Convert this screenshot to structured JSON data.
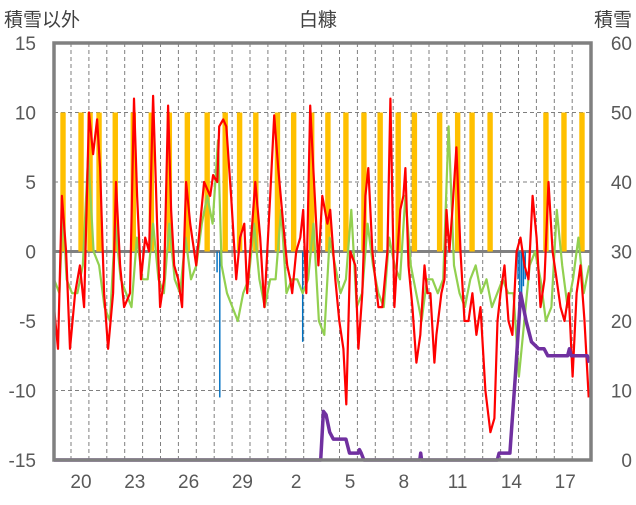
{
  "chart_data": {
    "type": "line",
    "title": "白糠",
    "ylabel_left": "積雪以外",
    "ylabel_right": "積雪",
    "ylim_left": [
      -15,
      15
    ],
    "ylim_right": [
      0,
      60
    ],
    "yticks_left": [
      "15",
      "10",
      "5",
      "0",
      "-5",
      "-10",
      "-15"
    ],
    "yticks_right": [
      "60",
      "50",
      "40",
      "30",
      "20",
      "10",
      "0"
    ],
    "xlim_days": [
      0,
      29.8
    ],
    "xtick_labels": [
      "20",
      "23",
      "26",
      "29",
      "2",
      "5",
      "8",
      "11",
      "14",
      "17"
    ],
    "grid": true,
    "colors": {
      "red": "#ff0000",
      "green": "#92d050",
      "orange": "#ffc000",
      "blue": "#0070c0",
      "purple": "#7030a0",
      "axis": "#808080"
    },
    "series": [
      {
        "name": "red",
        "axis": "left",
        "points": [
          [
            0,
            -4
          ],
          [
            0.22,
            -7
          ],
          [
            0.44,
            4
          ],
          [
            0.67,
            0
          ],
          [
            0.89,
            -7
          ],
          [
            1.17,
            -3
          ],
          [
            1.44,
            -1
          ],
          [
            1.67,
            -4
          ],
          [
            1.94,
            10
          ],
          [
            2.17,
            7
          ],
          [
            2.39,
            9.5
          ],
          [
            2.56,
            6
          ],
          [
            2.78,
            -3
          ],
          [
            3,
            -7
          ],
          [
            3.28,
            -3
          ],
          [
            3.44,
            5
          ],
          [
            3.67,
            -1
          ],
          [
            3.89,
            -4
          ],
          [
            4.22,
            -3
          ],
          [
            4.44,
            11
          ],
          [
            4.61,
            4
          ],
          [
            4.83,
            -2
          ],
          [
            5.06,
            1
          ],
          [
            5.28,
            0
          ],
          [
            5.5,
            11.2
          ],
          [
            5.72,
            2
          ],
          [
            5.89,
            -4
          ],
          [
            6.11,
            -2
          ],
          [
            6.33,
            10.5
          ],
          [
            6.5,
            3
          ],
          [
            6.67,
            -1
          ],
          [
            6.89,
            -2
          ],
          [
            7.11,
            -4
          ],
          [
            7.33,
            5
          ],
          [
            7.56,
            2
          ],
          [
            7.89,
            -1
          ],
          [
            8.33,
            5
          ],
          [
            8.67,
            4
          ],
          [
            8.83,
            5.5
          ],
          [
            9.06,
            5
          ],
          [
            9.17,
            9
          ],
          [
            9.39,
            9.5
          ],
          [
            9.56,
            9
          ],
          [
            9.83,
            4
          ],
          [
            10.11,
            -2
          ],
          [
            10.33,
            1
          ],
          [
            10.56,
            2
          ],
          [
            10.72,
            -3
          ],
          [
            10.89,
            0
          ],
          [
            11.17,
            5
          ],
          [
            11.44,
            1
          ],
          [
            11.67,
            -4
          ],
          [
            12,
            4
          ],
          [
            12.22,
            9.8
          ],
          [
            12.44,
            6
          ],
          [
            12.72,
            2
          ],
          [
            12.94,
            -1
          ],
          [
            13.11,
            -2
          ],
          [
            13.22,
            -3
          ],
          [
            13.44,
            0
          ],
          [
            13.67,
            1
          ],
          [
            13.83,
            3
          ],
          [
            14,
            -3
          ],
          [
            14.22,
            10.5
          ],
          [
            14.39,
            6
          ],
          [
            14.67,
            -1
          ],
          [
            14.89,
            4
          ],
          [
            15.17,
            2
          ],
          [
            15.33,
            3
          ],
          [
            15.61,
            -2
          ],
          [
            15.83,
            -5
          ],
          [
            16.06,
            -7
          ],
          [
            16.22,
            -11
          ],
          [
            16.44,
            0
          ],
          [
            16.72,
            -1
          ],
          [
            16.89,
            -7
          ],
          [
            17.11,
            -3
          ],
          [
            17.28,
            4
          ],
          [
            17.44,
            6
          ],
          [
            17.67,
            0
          ],
          [
            17.83,
            -2
          ],
          [
            18,
            -4
          ],
          [
            18.22,
            -4
          ],
          [
            18.5,
            0
          ],
          [
            18.67,
            11
          ],
          [
            18.89,
            -4
          ],
          [
            19.11,
            1
          ],
          [
            19.22,
            3
          ],
          [
            19.39,
            4
          ],
          [
            19.5,
            6
          ],
          [
            19.67,
            -1
          ],
          [
            19.89,
            -4
          ],
          [
            20.11,
            -8
          ],
          [
            20.33,
            -6
          ],
          [
            20.56,
            -1
          ],
          [
            20.72,
            -3
          ],
          [
            20.89,
            -3
          ],
          [
            21.11,
            -8
          ],
          [
            21.22,
            -6
          ],
          [
            21.5,
            -3
          ],
          [
            21.67,
            -2
          ],
          [
            21.78,
            3
          ],
          [
            21.94,
            0
          ],
          [
            22.11,
            3
          ],
          [
            22.33,
            7.5
          ],
          [
            22.56,
            0
          ],
          [
            22.78,
            -5
          ],
          [
            23,
            -5
          ],
          [
            23.22,
            -3
          ],
          [
            23.44,
            -6
          ],
          [
            23.67,
            -4
          ],
          [
            23.94,
            -10
          ],
          [
            24.22,
            -13
          ],
          [
            24.44,
            -12
          ],
          [
            24.61,
            -5
          ],
          [
            24.78,
            -3
          ],
          [
            25,
            -1
          ],
          [
            25.22,
            -5
          ],
          [
            25.44,
            -6
          ],
          [
            25.67,
            0
          ],
          [
            25.89,
            1
          ],
          [
            26.11,
            -1
          ],
          [
            26.33,
            -2
          ],
          [
            26.56,
            4
          ],
          [
            26.78,
            1
          ],
          [
            27,
            -4
          ],
          [
            27.22,
            -2
          ],
          [
            27.44,
            5
          ],
          [
            27.67,
            0
          ],
          [
            27.89,
            -2
          ],
          [
            28.11,
            -4
          ],
          [
            28.33,
            -5
          ],
          [
            28.56,
            -3
          ],
          [
            28.78,
            -9
          ],
          [
            29,
            -3
          ],
          [
            29.22,
            -1
          ],
          [
            29.44,
            -5
          ],
          [
            29.67,
            -10.5
          ]
        ]
      },
      {
        "name": "green",
        "axis": "left",
        "points": [
          [
            0,
            -2
          ],
          [
            0.3,
            -3
          ],
          [
            0.5,
            3
          ],
          [
            0.7,
            -2
          ],
          [
            1,
            -3
          ],
          [
            1.3,
            -3
          ],
          [
            1.6,
            -1
          ],
          [
            1.9,
            7
          ],
          [
            2.2,
            0
          ],
          [
            2.5,
            -1
          ],
          [
            2.8,
            -4
          ],
          [
            3.1,
            -5
          ],
          [
            3.4,
            2
          ],
          [
            3.7,
            -2
          ],
          [
            4,
            -3
          ],
          [
            4.3,
            -4
          ],
          [
            4.6,
            1
          ],
          [
            4.9,
            -2
          ],
          [
            5.2,
            -2
          ],
          [
            5.5,
            2
          ],
          [
            5.8,
            -2
          ],
          [
            6.1,
            -3
          ],
          [
            6.4,
            2
          ],
          [
            6.7,
            -2
          ],
          [
            7,
            -3
          ],
          [
            7.3,
            1
          ],
          [
            7.6,
            -2
          ],
          [
            7.9,
            -1
          ],
          [
            8.2,
            2
          ],
          [
            8.5,
            4
          ],
          [
            8.8,
            2
          ],
          [
            9.1,
            8
          ],
          [
            9.3,
            -1
          ],
          [
            9.6,
            -3
          ],
          [
            9.9,
            -4
          ],
          [
            10.2,
            -5
          ],
          [
            10.5,
            -3
          ],
          [
            10.8,
            -2
          ],
          [
            11.1,
            2
          ],
          [
            11.4,
            -2
          ],
          [
            11.7,
            -4
          ],
          [
            12,
            -2
          ],
          [
            12.3,
            -2
          ],
          [
            12.6,
            3
          ],
          [
            12.9,
            -3
          ],
          [
            13.2,
            -2
          ],
          [
            13.5,
            -2
          ],
          [
            13.8,
            -3
          ],
          [
            14.1,
            -2
          ],
          [
            14.4,
            2
          ],
          [
            14.7,
            -5
          ],
          [
            15,
            -6
          ],
          [
            15.3,
            1
          ],
          [
            15.6,
            -1
          ],
          [
            15.9,
            -3
          ],
          [
            16.2,
            -2
          ],
          [
            16.5,
            3
          ],
          [
            16.8,
            -4
          ],
          [
            17.1,
            -3
          ],
          [
            17.4,
            2
          ],
          [
            17.7,
            -1
          ],
          [
            18,
            -3
          ],
          [
            18.3,
            -4
          ],
          [
            18.6,
            1
          ],
          [
            18.9,
            -1
          ],
          [
            19.2,
            -2
          ],
          [
            19.5,
            4
          ],
          [
            19.8,
            -1
          ],
          [
            20.1,
            -3
          ],
          [
            20.4,
            -5
          ],
          [
            20.7,
            -2
          ],
          [
            21,
            -2
          ],
          [
            21.3,
            -3
          ],
          [
            21.6,
            -2
          ],
          [
            21.9,
            9
          ],
          [
            22.2,
            -1
          ],
          [
            22.5,
            -3
          ],
          [
            22.8,
            -4
          ],
          [
            23.1,
            -2
          ],
          [
            23.4,
            -1
          ],
          [
            23.7,
            -3
          ],
          [
            24,
            -2
          ],
          [
            24.3,
            -4
          ],
          [
            24.6,
            -3
          ],
          [
            24.9,
            -2
          ],
          [
            25.2,
            -3
          ],
          [
            25.5,
            -3
          ],
          [
            25.8,
            -9
          ],
          [
            26.1,
            -5
          ],
          [
            26.4,
            -1
          ],
          [
            26.7,
            0
          ],
          [
            27,
            -2
          ],
          [
            27.3,
            -5
          ],
          [
            27.6,
            -4
          ],
          [
            27.9,
            3
          ],
          [
            28.2,
            -1
          ],
          [
            28.5,
            -4
          ],
          [
            28.8,
            -2
          ],
          [
            29.1,
            1
          ],
          [
            29.4,
            -3
          ],
          [
            29.7,
            -1
          ]
        ]
      },
      {
        "name": "purple",
        "axis": "right",
        "points": [
          [
            0,
            0
          ],
          [
            14.8,
            0
          ],
          [
            14.95,
            7
          ],
          [
            15.1,
            6.5
          ],
          [
            15.3,
            4
          ],
          [
            15.5,
            3
          ],
          [
            16.2,
            3
          ],
          [
            16.4,
            1
          ],
          [
            16.9,
            1
          ],
          [
            16.95,
            1.5
          ],
          [
            17.05,
            1
          ],
          [
            17.2,
            0
          ],
          [
            20.3,
            0
          ],
          [
            20.35,
            1
          ],
          [
            20.4,
            0
          ],
          [
            24.6,
            0
          ],
          [
            24.7,
            1
          ],
          [
            25.3,
            1
          ],
          [
            25.6,
            12
          ],
          [
            25.9,
            24
          ],
          [
            26.2,
            20
          ],
          [
            26.5,
            17
          ],
          [
            26.9,
            16
          ],
          [
            27.2,
            16
          ],
          [
            27.4,
            15
          ],
          [
            28.5,
            15
          ],
          [
            28.6,
            16
          ],
          [
            28.7,
            15
          ],
          [
            29.6,
            15
          ],
          [
            29.7,
            14
          ]
        ]
      }
    ],
    "bars": [
      {
        "name": "orange",
        "axis": "left",
        "width_days": 0.3,
        "points": [
          [
            0.5,
            10
          ],
          [
            1.5,
            10
          ],
          [
            2.0,
            10
          ],
          [
            2.5,
            10
          ],
          [
            3.4,
            10
          ],
          [
            4.4,
            10
          ],
          [
            5.4,
            10
          ],
          [
            6.4,
            10
          ],
          [
            7.4,
            10
          ],
          [
            8.5,
            10
          ],
          [
            9.5,
            10
          ],
          [
            10.3,
            10
          ],
          [
            11.2,
            10
          ],
          [
            12.4,
            10
          ],
          [
            13.3,
            10
          ],
          [
            14.3,
            10
          ],
          [
            15.2,
            10
          ],
          [
            16.2,
            10
          ],
          [
            17.2,
            10
          ],
          [
            18.1,
            10
          ],
          [
            19.1,
            10
          ],
          [
            20.0,
            10
          ],
          [
            21.4,
            10
          ],
          [
            22.4,
            10
          ],
          [
            23.2,
            10
          ],
          [
            24.2,
            10
          ],
          [
            27.3,
            10
          ],
          [
            28.3,
            10
          ],
          [
            29.3,
            10
          ]
        ]
      },
      {
        "name": "blue",
        "axis": "left",
        "width_days": 0.08,
        "points": [
          [
            9.05,
            -1.5
          ],
          [
            9.2,
            -10.5
          ],
          [
            13.8,
            -6.5
          ],
          [
            14.0,
            -1
          ],
          [
            15.5,
            -0.5
          ],
          [
            25.75,
            -2
          ],
          [
            25.85,
            -3
          ],
          [
            25.95,
            -3
          ],
          [
            26.05,
            -2.5
          ],
          [
            26.15,
            -2
          ]
        ]
      }
    ]
  }
}
